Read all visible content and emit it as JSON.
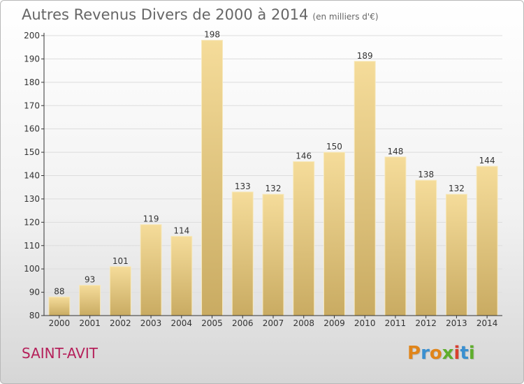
{
  "page": {
    "title": "Autres Revenus Divers de 2000 à 2014",
    "title_unit": "(en milliers d'€)",
    "place": "SAINT-AVIT",
    "logo_text": "Proxiti"
  },
  "colors": {
    "bar_top": "#f5dc9a",
    "bar_bottom": "#c9ab62",
    "axis": "#333333",
    "grid": "#dddddd",
    "place": "#b5205a",
    "logo_letters": [
      "#e0851a",
      "#3a8fd0",
      "#e0851a",
      "#5fae2d",
      "#d8402f",
      "#3a8fd0",
      "#5fae2d"
    ]
  },
  "chart_data": {
    "type": "bar",
    "title": "Autres Revenus Divers de 2000 à 2014",
    "subtitle": "(en milliers d'€)",
    "xlabel": "",
    "ylabel": "",
    "categories": [
      "2000",
      "2001",
      "2002",
      "2003",
      "2004",
      "2005",
      "2006",
      "2007",
      "2008",
      "2009",
      "2010",
      "2011",
      "2012",
      "2013",
      "2014"
    ],
    "values": [
      88,
      93,
      101,
      119,
      114,
      198,
      133,
      132,
      146,
      150,
      189,
      148,
      138,
      132,
      144
    ],
    "ylim": [
      80,
      200
    ],
    "yticks": [
      80,
      90,
      100,
      110,
      120,
      130,
      140,
      150,
      160,
      170,
      180,
      190,
      200
    ],
    "grid": true,
    "data_labels": true
  }
}
